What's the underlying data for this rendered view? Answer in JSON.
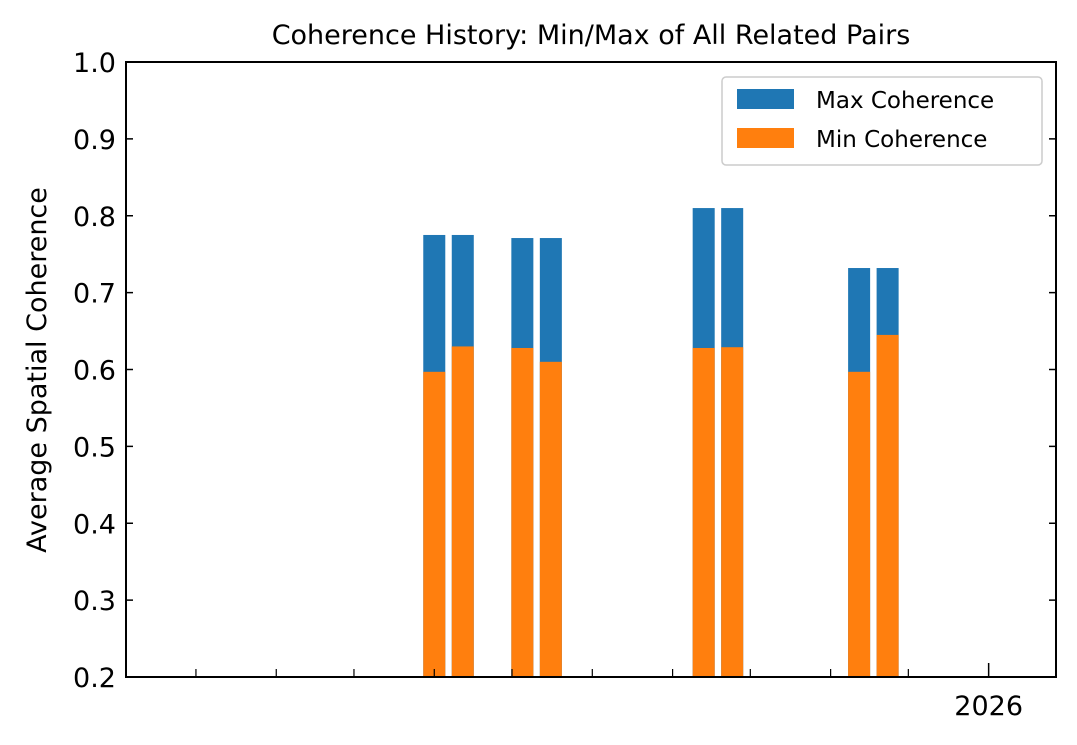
{
  "chart_data": {
    "type": "bar",
    "stacked_overlay": true,
    "title": "Coherence History: Min/Max of All Related Pairs",
    "xlabel": "",
    "ylabel": "Average Spatial Coherence",
    "ylim": [
      0.2,
      1.0
    ],
    "yticks": [
      "0.2",
      "0.3",
      "0.4",
      "0.5",
      "0.6",
      "0.7",
      "0.8",
      "0.9",
      "1.0"
    ],
    "xlim": [
      "2025-02-02",
      "2026-01-27"
    ],
    "x_major_ticks": [
      {
        "date": "2026-01-01",
        "label": "2026"
      }
    ],
    "x_minor_ticks": [
      "2025-03-01",
      "2025-04-01",
      "2025-05-01",
      "2025-06-01",
      "2025-07-01",
      "2025-08-01",
      "2025-09-01",
      "2025-10-01",
      "2025-11-01",
      "2025-12-01"
    ],
    "bar_width_days": 8.5,
    "x": [
      "2025-06-01",
      "2025-06-12",
      "2025-07-05",
      "2025-07-16",
      "2025-09-13",
      "2025-09-24",
      "2025-11-12",
      "2025-11-23"
    ],
    "series": [
      {
        "name": "Max Coherence",
        "color": "#1f77b4",
        "values": [
          0.775,
          0.775,
          0.771,
          0.771,
          0.81,
          0.81,
          0.732,
          0.732
        ]
      },
      {
        "name": "Min Coherence",
        "color": "#ff7f0e",
        "values": [
          0.597,
          0.63,
          0.628,
          0.61,
          0.628,
          0.629,
          0.597,
          0.645
        ]
      }
    ],
    "legend": {
      "placement": "top-right"
    },
    "grid": false
  }
}
